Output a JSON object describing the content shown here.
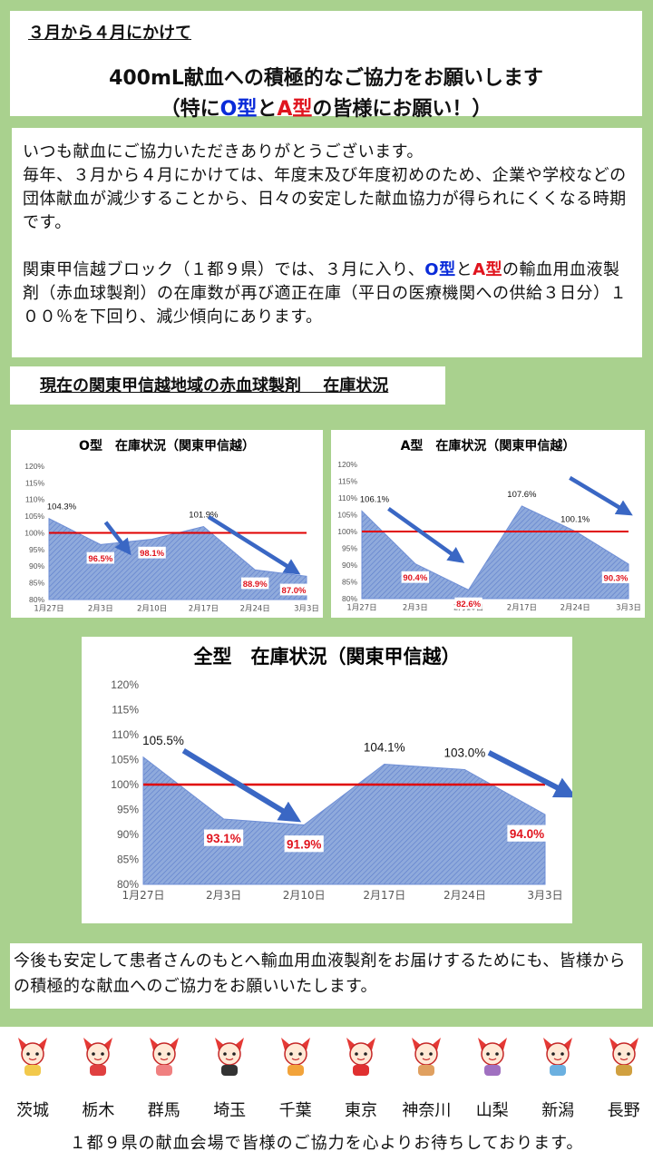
{
  "header": {
    "kicker": "３月から４月にかけて",
    "title": "400mL献血への積極的なご協力をお願いします",
    "subtitle_open": "（特に",
    "type_o": "O型",
    "and": "と",
    "type_a": "A型",
    "subtitle_close": "の皆様にお願い！）"
  },
  "intro": {
    "p1": "いつも献血にご協力いただきありがとうございます。\n毎年、３月から４月にかけては、年度末及び年度初めのため、企業や学校などの団体献血が減少することから、日々の安定した献血協力が得られにくくなる時期です。",
    "p2_before": "関東甲信越ブロック（１都９県）では、３月に入り、",
    "type_o": "O型",
    "and": "と",
    "type_a": "A型",
    "p2_after": "の輸血用血液製剤（赤血球製剤）の在庫数が再び適正在庫（平日の医療機関への供給３日分）１００％を下回り、減少傾向にあります。"
  },
  "section_title": "現在の関東甲信越地域の赤血球製剤　 在庫状況",
  "colors": {
    "background": "#a9d18e",
    "area_fill": "#8faadc",
    "area_stroke": "#6f8fd6",
    "reference_line": "#e00000",
    "arrow": "#3a67c4",
    "value_label_red": "#e0141e"
  },
  "chart_data": [
    {
      "id": "chart-o",
      "type": "area",
      "title": "O型　在庫状況（関東甲信越）",
      "categories": [
        "1月27日",
        "2月3日",
        "2月10日",
        "2月17日",
        "2月24日",
        "3月3日"
      ],
      "values": [
        104.3,
        96.5,
        98.1,
        101.9,
        88.9,
        87.0
      ],
      "value_labels": [
        "104.3%",
        "96.5%",
        "98.1%",
        "101.9%",
        "88.9%",
        "87.0%"
      ],
      "label_colors": [
        "black",
        "red",
        "red",
        "black",
        "red",
        "red"
      ],
      "yticks": [
        "80%",
        "85%",
        "90%",
        "95%",
        "100%",
        "105%",
        "110%",
        "115%",
        "120%"
      ],
      "ylim": [
        80,
        120
      ],
      "reference": 100,
      "unit": "%",
      "trend_arrows": "down"
    },
    {
      "id": "chart-a",
      "type": "area",
      "title": "A型　在庫状況（関東甲信越）",
      "categories": [
        "1月27日",
        "2月3日",
        "2月10日",
        "2月17日",
        "2月24日",
        "3月3日"
      ],
      "values": [
        106.1,
        90.4,
        82.6,
        107.6,
        100.1,
        90.3
      ],
      "value_labels": [
        "106.1%",
        "90.4%",
        "82.6%",
        "107.6%",
        "100.1%",
        "90.3%"
      ],
      "label_colors": [
        "black",
        "red",
        "red",
        "black",
        "black",
        "red"
      ],
      "yticks": [
        "80%",
        "85%",
        "90%",
        "95%",
        "100%",
        "105%",
        "110%",
        "115%",
        "120%"
      ],
      "ylim": [
        80,
        120
      ],
      "reference": 100,
      "unit": "%",
      "trend_arrows": "down"
    },
    {
      "id": "chart-all",
      "type": "area",
      "title": "全型　在庫状況（関東甲信越）",
      "categories": [
        "1月27日",
        "2月3日",
        "2月10日",
        "2月17日",
        "2月24日",
        "3月3日"
      ],
      "values": [
        105.5,
        93.1,
        91.9,
        104.1,
        103.0,
        94.0
      ],
      "value_labels": [
        "105.5%",
        "93.1%",
        "91.9%",
        "104.1%",
        "103.0%",
        "94.0%"
      ],
      "label_colors": [
        "black",
        "red",
        "red",
        "black",
        "black",
        "red"
      ],
      "yticks": [
        "80%",
        "85%",
        "90%",
        "95%",
        "100%",
        "105%",
        "110%",
        "115%",
        "120%"
      ],
      "ylim": [
        80,
        120
      ],
      "reference": 100,
      "unit": "%",
      "trend_arrows": "down"
    }
  ],
  "closing": "今後も安定して患者さんのもとへ輸血用血液製剤をお届けするためにも、皆様からの積極的な献血へのご協力をお願いいたします。",
  "prefectures": [
    {
      "name": "茨城",
      "icon": "ibaraki-mascot-icon"
    },
    {
      "name": "栃木",
      "icon": "tochigi-mascot-icon"
    },
    {
      "name": "群馬",
      "icon": "gunma-mascot-icon"
    },
    {
      "name": "埼玉",
      "icon": "saitama-mascot-icon"
    },
    {
      "name": "千葉",
      "icon": "chiba-mascot-icon"
    },
    {
      "name": "東京",
      "icon": "tokyo-mascot-icon"
    },
    {
      "name": "神奈川",
      "icon": "kanagawa-mascot-icon"
    },
    {
      "name": "山梨",
      "icon": "yamanashi-mascot-icon"
    },
    {
      "name": "新潟",
      "icon": "niigata-mascot-icon"
    },
    {
      "name": "長野",
      "icon": "nagano-mascot-icon"
    }
  ],
  "footer_note": "１都９県の献血会場で皆様のご協力を心よりお待ちしております。"
}
